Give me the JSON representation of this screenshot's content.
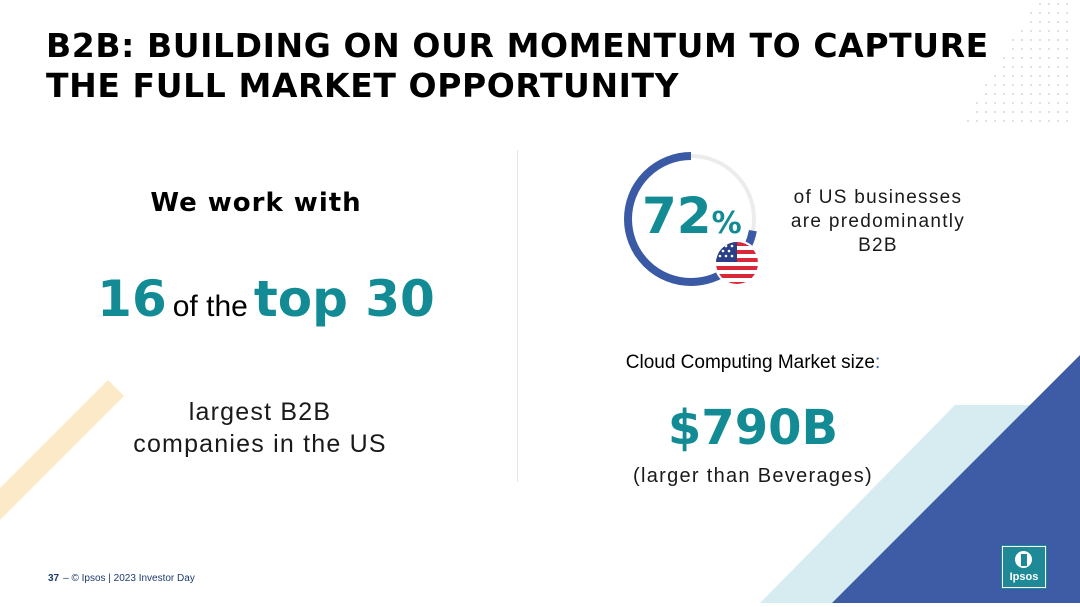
{
  "slide": {
    "title_line1": "B2B: BUILDING ON OUR MOMENTUM TO CAPTURE",
    "title_line2": "THE FULL MARKET OPPORTUNITY"
  },
  "left_panel": {
    "lead": "We work with",
    "number": "16",
    "connector": "of the",
    "emphasis": "top 30",
    "desc_line1": "largest B2B",
    "desc_line2": "companies in the US"
  },
  "right_panel": {
    "stat": {
      "value": "72",
      "unit": "%",
      "progress_fraction": 0.72,
      "text_line1": "of US businesses",
      "text_line2": "are predominantly",
      "text_line3": "B2B",
      "flag_icon": "us-flag-icon"
    },
    "market": {
      "label": "Cloud Computing Market size",
      "colon": ":",
      "value": "$790B",
      "note": "(larger than Beverages)"
    }
  },
  "footer": {
    "page_number": "37",
    "dash": "–",
    "copyright": "© Ipsos | 2023 Investor Day"
  },
  "logo": {
    "text": "Ipsos"
  },
  "colors": {
    "accent_teal": "#138b95",
    "ring_blue": "#3a5aa5",
    "triangle_blue": "#3e5ba6",
    "triangle_light": "#d6ecf0",
    "stripe_beige": "#fbe9c8"
  }
}
